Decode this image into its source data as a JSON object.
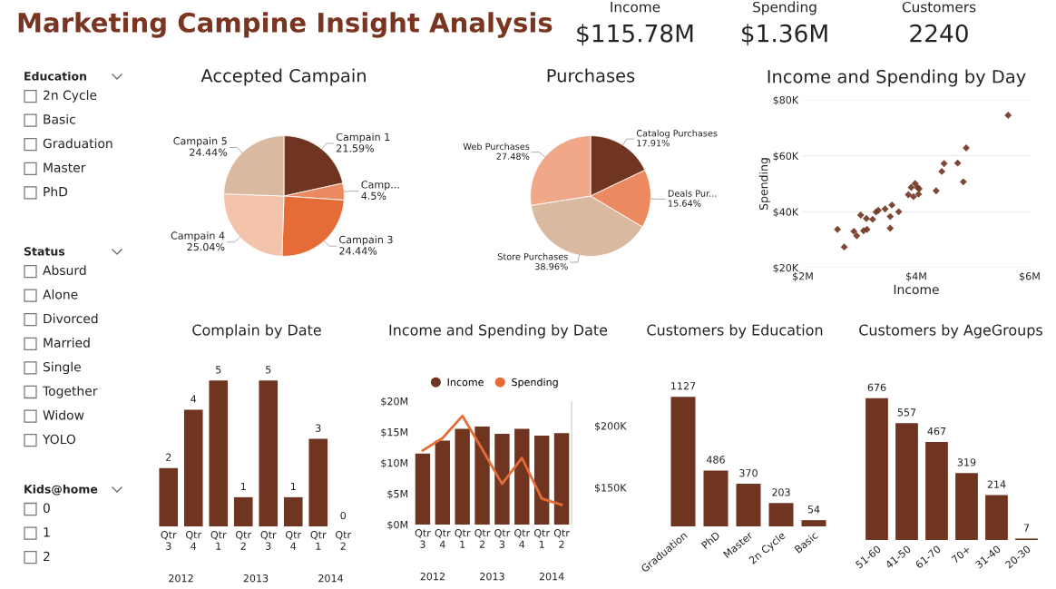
{
  "chart_data": [
    {
      "type": "other",
      "title": "Marketing Campine Insight Analysis"
    },
    {
      "type": "other",
      "title": "Income",
      "annotations": [
        "$115.78M"
      ]
    },
    {
      "type": "other",
      "title": "Spending",
      "annotations": [
        "$1.36M"
      ]
    },
    {
      "type": "other",
      "title": "Customers",
      "annotations": [
        "2240"
      ]
    },
    {
      "type": "other",
      "title": "Education",
      "annotations": [
        "2n Cycle",
        "Basic",
        "Graduation",
        "Master",
        "PhD"
      ]
    },
    {
      "type": "other",
      "title": "Status",
      "annotations": [
        "Absurd",
        "Alone",
        "Divorced",
        "Married",
        "Single",
        "Together",
        "Widow",
        "YOLO"
      ]
    },
    {
      "type": "other",
      "title": "Kids@home",
      "annotations": [
        "0",
        "1",
        "2"
      ]
    },
    {
      "type": "pie",
      "title": "Accepted Campain",
      "categories": [
        "Campain 1",
        "Camp...",
        "Campain 3",
        "Campain 4",
        "Campain 5"
      ],
      "values": [
        21.59,
        4.5,
        24.44,
        25.04,
        24.44
      ],
      "value_labels": [
        "21.59%",
        "4.5%",
        "24.44%",
        "25.04%",
        "24.44%"
      ],
      "colors": [
        "#6f3520",
        "#eb8a60",
        "#e66c37",
        "#f4c3ac",
        "#d9b9a0"
      ]
    },
    {
      "type": "pie",
      "title": "Purchases",
      "categories": [
        "Catalog Purchases",
        "Deals Pur...",
        "Store Purchases",
        "Web Purchases"
      ],
      "values": [
        17.91,
        15.64,
        38.96,
        27.48
      ],
      "value_labels": [
        "17.91%",
        "15.64%",
        "38.96%",
        "27.48%"
      ],
      "colors": [
        "#6f3520",
        "#eb8a60",
        "#d9b9a0",
        "#f0a888"
      ]
    },
    {
      "type": "scatter",
      "title": "Income and Spending by Day",
      "xlabel": "Income",
      "ylabel": "Spending",
      "marker": "diamond",
      "grid": "y",
      "x": [
        2.61,
        2.73,
        2.9,
        2.95,
        3.02,
        3.07,
        3.13,
        3.12,
        3.23,
        3.29,
        3.33,
        3.45,
        3.54,
        3.54,
        3.57,
        3.69,
        3.86,
        3.91,
        3.95,
        3.98,
        4.02,
        4.05,
        4.04,
        4.35,
        4.45,
        4.49,
        4.73,
        4.83,
        4.88,
        5.62
      ],
      "series": [
        {
          "color": "#6f3520",
          "values": [
            33.7,
            27.4,
            33.0,
            31.4,
            38.8,
            33.2,
            33.7,
            37.6,
            37.3,
            39.9,
            40.5,
            41.0,
            34.1,
            38.3,
            42.4,
            40.0,
            46.1,
            48.7,
            45.4,
            50.1,
            48.7,
            48.2,
            46.3,
            47.5,
            54.4,
            57.2,
            57.4,
            50.7,
            62.8,
            74.5
          ]
        }
      ],
      "xlim": [
        2,
        6
      ],
      "xticks": [
        {
          "value": 2,
          "label": "$2M"
        },
        {
          "value": 4,
          "label": "$4M"
        },
        {
          "value": 6,
          "label": "$6M"
        }
      ],
      "ylim": [
        20,
        80
      ],
      "yticks": [
        {
          "value": 20,
          "label": "$20K"
        },
        {
          "value": 40,
          "label": "$40K"
        },
        {
          "value": 60,
          "label": "$60K"
        },
        {
          "value": 80,
          "label": "$80K"
        }
      ]
    },
    {
      "type": "bar",
      "title": "Complain by Date",
      "categories": [
        "Qtr 3",
        "Qtr 4",
        "Qtr 1",
        "Qtr 2",
        "Qtr 3",
        "Qtr 4",
        "Qtr 1",
        "Qtr 2"
      ],
      "annotations": [
        "2012",
        "2013",
        "2014"
      ],
      "values": [
        2,
        4,
        5,
        1,
        5,
        1,
        3,
        0
      ],
      "color": "#6f3520",
      "data_labels": true,
      "tick_labels": "x"
    },
    {
      "type": "bar",
      "title": "Income and Spending by Date",
      "categories": [
        "Qtr 3",
        "Qtr 4",
        "Qtr 1",
        "Qtr 2",
        "Qtr 3",
        "Qtr 4",
        "Qtr 1",
        "Qtr 2"
      ],
      "annotations": [
        "2012",
        "2013",
        "2014"
      ],
      "legend": "top",
      "series": [
        {
          "name": "Income",
          "type": "bar",
          "color": "#6f3520",
          "values": [
            11.5,
            13.6,
            15.5,
            15.9,
            14.7,
            15.5,
            14.4,
            14.8
          ]
        },
        {
          "name": "Spending",
          "type": "line",
          "axis": "y2",
          "color": "#e66c37",
          "values": [
            180,
            190,
            208,
            181,
            153,
            174,
            141,
            136
          ]
        }
      ],
      "ylim": [
        0,
        20
      ],
      "yticks": [
        {
          "value": 0,
          "label": "$0M"
        },
        {
          "value": 5,
          "label": "$5M"
        },
        {
          "value": 10,
          "label": "$10M"
        },
        {
          "value": 15,
          "label": "$15M"
        },
        {
          "value": 20,
          "label": "$20M"
        }
      ],
      "y2lim": [
        120,
        220
      ],
      "y2ticks": [
        {
          "value": 150,
          "label": "$150K"
        },
        {
          "value": 200,
          "label": "$200K"
        }
      ]
    },
    {
      "type": "bar",
      "title": "Customers by Education",
      "categories": [
        "Graduation",
        "PhD",
        "Master",
        "2n Cycle",
        "Basic"
      ],
      "values": [
        1127,
        486,
        370,
        203,
        54
      ],
      "color": "#6f3520",
      "data_labels": true,
      "tick_labels": "x"
    },
    {
      "type": "bar",
      "title": "Customers by AgeGroups",
      "categories": [
        "51-60",
        "41-50",
        "61-70",
        "70+",
        "31-40",
        "20-30"
      ],
      "values": [
        676,
        557,
        467,
        319,
        214,
        7
      ],
      "color": "#6f3520",
      "data_labels": true,
      "tick_labels": "x"
    }
  ]
}
